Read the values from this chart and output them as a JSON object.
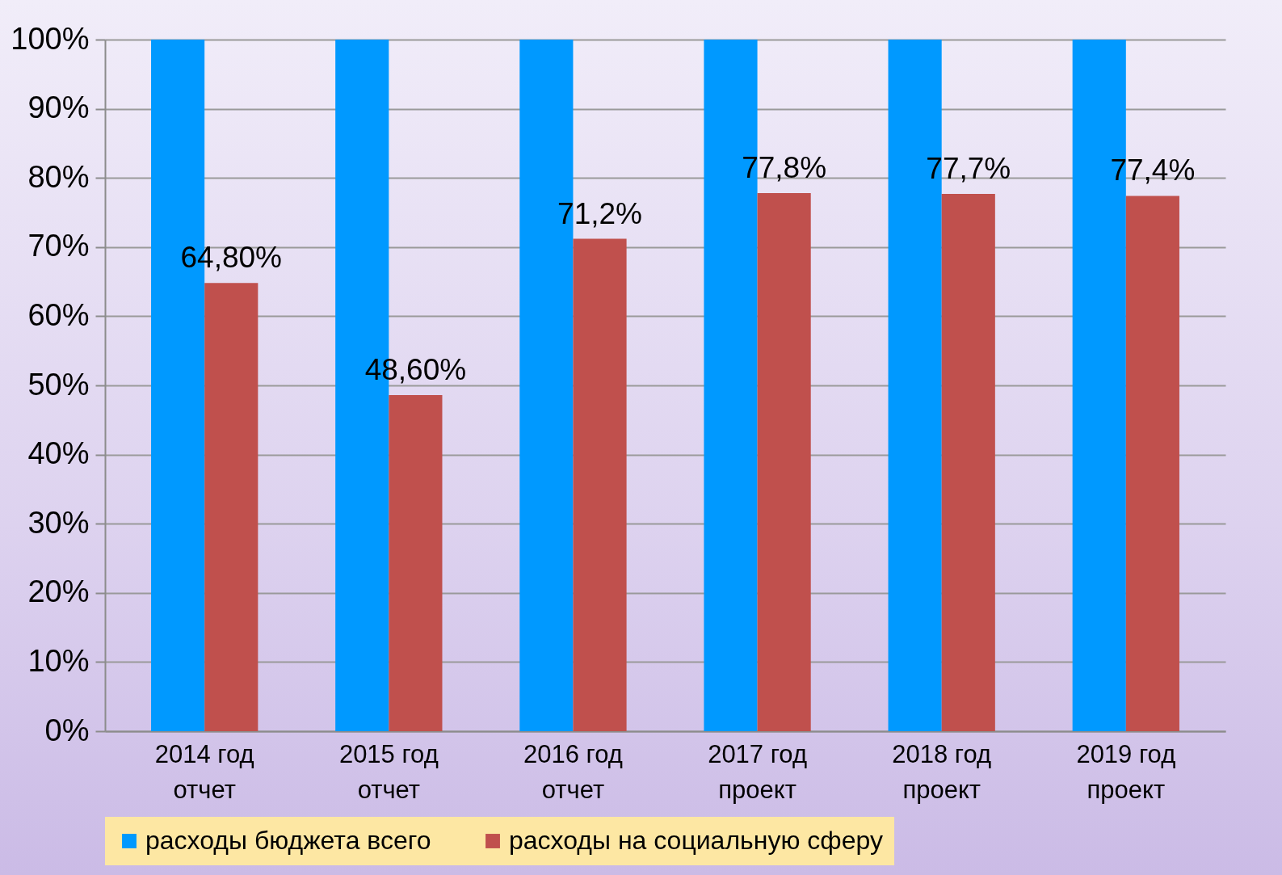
{
  "chart_data": {
    "type": "bar",
    "categories": [
      "2014 год отчет",
      "2015 год отчет",
      "2016 год отчет",
      "2017 год проект",
      "2018 год проект",
      "2019 год проект"
    ],
    "series": [
      {
        "name": "расходы бюджета всего",
        "color": "#0099ff",
        "values": [
          100,
          100,
          100,
          100,
          100,
          100
        ]
      },
      {
        "name": "расходы на социальную сферу",
        "color": "#c0504d",
        "values": [
          64.8,
          48.6,
          71.2,
          77.8,
          77.7,
          77.4
        ],
        "value_labels": [
          "64,80%",
          "48,60%",
          "71,2%",
          "77,8%",
          "77,7%",
          "77,4%"
        ]
      }
    ],
    "ylim": [
      0,
      100
    ],
    "yticks": [
      {
        "value": 0,
        "label": "0%"
      },
      {
        "value": 10,
        "label": "10%"
      },
      {
        "value": 20,
        "label": "20%"
      },
      {
        "value": 30,
        "label": "30%"
      },
      {
        "value": 40,
        "label": "40%"
      },
      {
        "value": 50,
        "label": "50%"
      },
      {
        "value": 60,
        "label": "60%"
      },
      {
        "value": 70,
        "label": "70%"
      },
      {
        "value": 80,
        "label": "80%"
      },
      {
        "value": 90,
        "label": "90%"
      },
      {
        "value": 100,
        "label": "100%"
      }
    ],
    "grid": "y",
    "legend": "bottom"
  }
}
